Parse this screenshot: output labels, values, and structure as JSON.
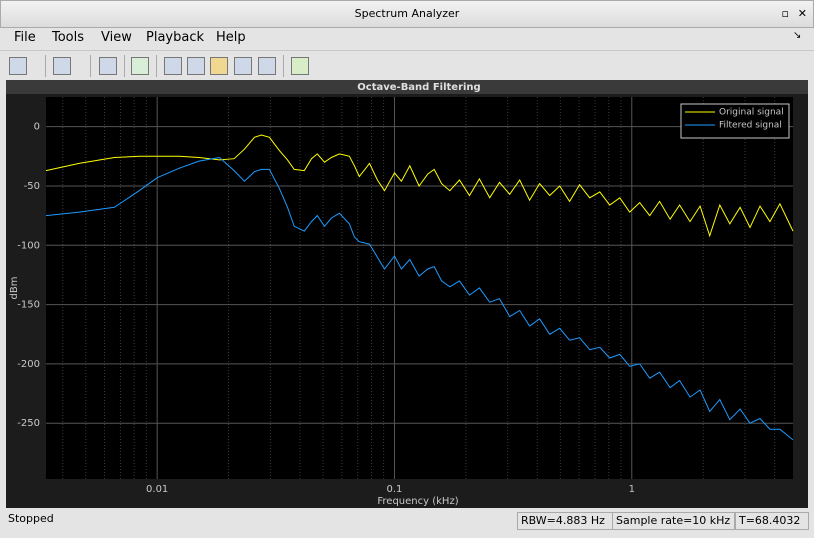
{
  "window_title": "Spectrum Analyzer",
  "menu": [
    "File",
    "Tools",
    "View",
    "Playback",
    "Help"
  ],
  "status": {
    "state": "Stopped",
    "rbw": "RBW=4.883 Hz",
    "sample_rate": "Sample rate=10 kHz",
    "time": "T=68.4032"
  },
  "chart_data": {
    "type": "line",
    "title": "Octave-Band Filtering",
    "xlabel": "Frequency (kHz)",
    "ylabel": "dBm",
    "xscale": "log",
    "grid": true,
    "legend": "upper right",
    "xlim": [
      0.0034,
      4.78
    ],
    "ylim": [
      -297,
      25
    ],
    "xticks": [
      0.01,
      0.1,
      1
    ],
    "x_minor_ticks": [
      0.004,
      0.005,
      0.006,
      0.007,
      0.008,
      0.009,
      0.02,
      0.03,
      0.04,
      0.05,
      0.06,
      0.07,
      0.08,
      0.09,
      0.2,
      0.3,
      0.4,
      0.5,
      0.6,
      0.7,
      0.8,
      0.9,
      2,
      3,
      4
    ],
    "yticks": [
      0,
      -50,
      -100,
      -150,
      -200,
      -250
    ],
    "x": [
      0.0034,
      0.00469,
      0.0066,
      0.0084,
      0.01,
      0.0124,
      0.015,
      0.0183,
      0.0211,
      0.0233,
      0.0257,
      0.0275,
      0.0297,
      0.0327,
      0.0354,
      0.0378,
      0.0417,
      0.0447,
      0.0473,
      0.0507,
      0.0542,
      0.0586,
      0.0646,
      0.0678,
      0.0711,
      0.0785,
      0.0847,
      0.0908,
      0.1,
      0.107,
      0.116,
      0.127,
      0.138,
      0.147,
      0.158,
      0.171,
      0.188,
      0.207,
      0.228,
      0.252,
      0.277,
      0.306,
      0.337,
      0.371,
      0.409,
      0.451,
      0.497,
      0.547,
      0.603,
      0.665,
      0.733,
      0.807,
      0.89,
      0.98,
      1.08,
      1.19,
      1.31,
      1.45,
      1.59,
      1.76,
      1.94,
      2.13,
      2.35,
      2.59,
      2.86,
      3.15,
      3.47,
      3.82,
      4.21,
      4.78
    ],
    "series": [
      {
        "name": "Original signal",
        "color": "#ffff00",
        "values": [
          -37,
          -31,
          -26,
          -25,
          -25,
          -25,
          -26,
          -28,
          -27,
          -19,
          -9,
          -7,
          -9,
          -20,
          -28,
          -36,
          -37,
          -27,
          -23,
          -30,
          -26,
          -23,
          -25,
          -33,
          -42,
          -31,
          -45,
          -54,
          -39,
          -46,
          -33,
          -50,
          -40,
          -36,
          -48,
          -54,
          -45,
          -58,
          -44,
          -60,
          -47,
          -57,
          -45,
          -62,
          -48,
          -58,
          -50,
          -63,
          -49,
          -60,
          -55,
          -66,
          -60,
          -72,
          -64,
          -75,
          -63,
          -78,
          -66,
          -80,
          -67,
          -92,
          -66,
          -82,
          -68,
          -85,
          -67,
          -80,
          -65,
          -88
        ]
      },
      {
        "name": "Filtered signal",
        "color": "#1e9bff",
        "values": [
          -75,
          -72,
          -68,
          -54,
          -43,
          -35,
          -29,
          -26,
          -37,
          -46,
          -38,
          -36,
          -36,
          -52,
          -68,
          -84,
          -88,
          -80,
          -75,
          -84,
          -77,
          -73,
          -82,
          -93,
          -97,
          -99,
          -110,
          -120,
          -109,
          -120,
          -112,
          -126,
          -120,
          -118,
          -130,
          -135,
          -130,
          -142,
          -136,
          -148,
          -145,
          -160,
          -155,
          -168,
          -162,
          -175,
          -170,
          -180,
          -178,
          -188,
          -186,
          -195,
          -192,
          -202,
          -200,
          -212,
          -207,
          -220,
          -214,
          -228,
          -222,
          -240,
          -230,
          -247,
          -238,
          -250,
          -246,
          -255,
          -255,
          -264
        ]
      }
    ]
  }
}
